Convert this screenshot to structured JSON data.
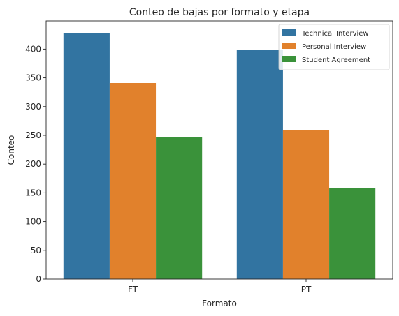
{
  "chart_data": {
    "type": "bar",
    "title": "Conteo de bajas por formato y etapa",
    "xlabel": "Formato",
    "ylabel": "Conteo",
    "categories": [
      "FT",
      "PT"
    ],
    "series": [
      {
        "name": "Technical Interview",
        "values": [
          428,
          399
        ],
        "color": "#3274a1"
      },
      {
        "name": "Personal Interview",
        "values": [
          341,
          259
        ],
        "color": "#e1812c"
      },
      {
        "name": "Student Agreement",
        "values": [
          247,
          158
        ],
        "color": "#3a923a"
      }
    ],
    "ylim": [
      0,
      449
    ],
    "yticks": [
      0,
      50,
      100,
      150,
      200,
      250,
      300,
      350,
      400
    ],
    "grid": false,
    "legend_position": "top-right"
  }
}
